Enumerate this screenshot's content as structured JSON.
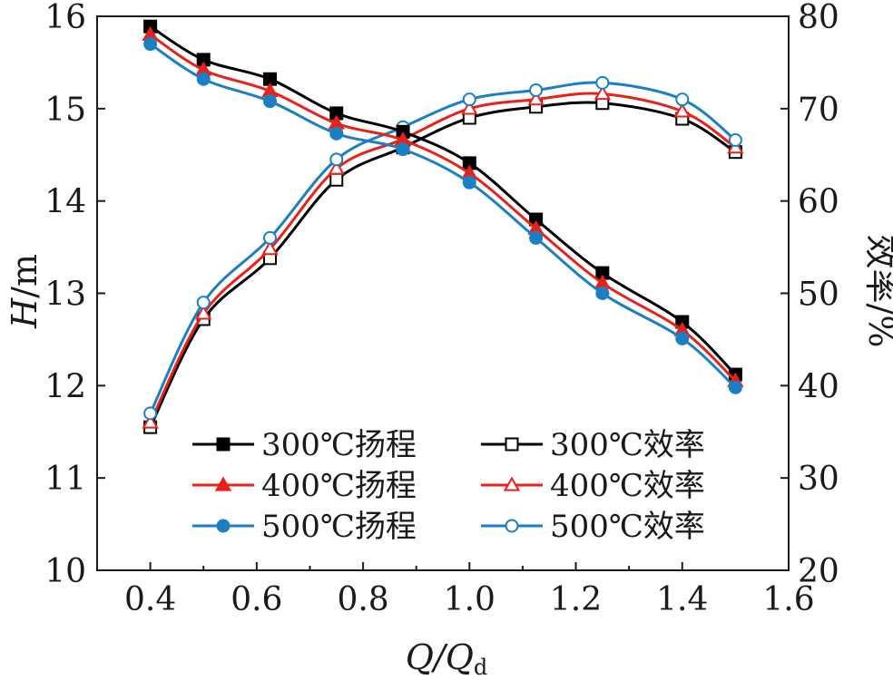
{
  "chart_data": {
    "type": "line",
    "xlabel": {
      "main": "Q/Q",
      "sub": "d"
    },
    "ylabel_left": {
      "main": "H",
      "rest": "/m"
    },
    "ylabel_right": "效率/%",
    "xlim": [
      0.3,
      1.6
    ],
    "ylim_left": [
      10,
      16
    ],
    "ylim_right": [
      20,
      80
    ],
    "xticks": [
      "0.4",
      "0.6",
      "0.8",
      "1.0",
      "1.2",
      "1.4",
      "1.6"
    ],
    "yticks_left": [
      "10",
      "11",
      "12",
      "13",
      "14",
      "15",
      "16"
    ],
    "yticks_right": [
      "20",
      "30",
      "40",
      "50",
      "60",
      "70",
      "80"
    ],
    "grid": false,
    "legend_position": "lower-center",
    "x": [
      0.4,
      0.5,
      0.625,
      0.75,
      0.875,
      1.0,
      1.125,
      1.25,
      1.4,
      1.5
    ],
    "series": [
      {
        "name": "300℃扬程",
        "axis": "left",
        "color": "#000000",
        "marker": "square",
        "filled": true,
        "values": [
          15.89,
          15.53,
          15.32,
          14.95,
          14.75,
          14.41,
          13.8,
          13.22,
          12.69,
          12.12
        ]
      },
      {
        "name": "300℃效率",
        "axis": "right",
        "color": "#000000",
        "marker": "square",
        "filled": false,
        "values": [
          35.5,
          47.2,
          53.8,
          62.3,
          65.8,
          69.0,
          70.2,
          70.6,
          68.9,
          65.3
        ]
      },
      {
        "name": "400℃扬程",
        "axis": "left",
        "color": "#e8211b",
        "marker": "triangle",
        "filled": true,
        "values": [
          15.8,
          15.42,
          15.19,
          14.84,
          14.66,
          14.3,
          13.7,
          13.11,
          12.6,
          12.05
        ]
      },
      {
        "name": "400℃效率",
        "axis": "right",
        "color": "#e8211b",
        "marker": "triangle",
        "filled": false,
        "values": [
          36.0,
          47.8,
          54.8,
          63.5,
          66.7,
          70.0,
          71.0,
          71.6,
          69.7,
          65.8
        ]
      },
      {
        "name": "500℃扬程",
        "axis": "left",
        "color": "#1b7fc4",
        "marker": "circle",
        "filled": true,
        "values": [
          15.7,
          15.32,
          15.08,
          14.73,
          14.56,
          14.2,
          13.6,
          13.0,
          12.51,
          11.98
        ]
      },
      {
        "name": "500℃效率",
        "axis": "right",
        "color": "#1b7fc4",
        "marker": "circle",
        "filled": false,
        "values": [
          37.0,
          49.0,
          56.0,
          64.5,
          68.0,
          71.0,
          72.0,
          72.8,
          71.0,
          66.6
        ]
      }
    ]
  }
}
